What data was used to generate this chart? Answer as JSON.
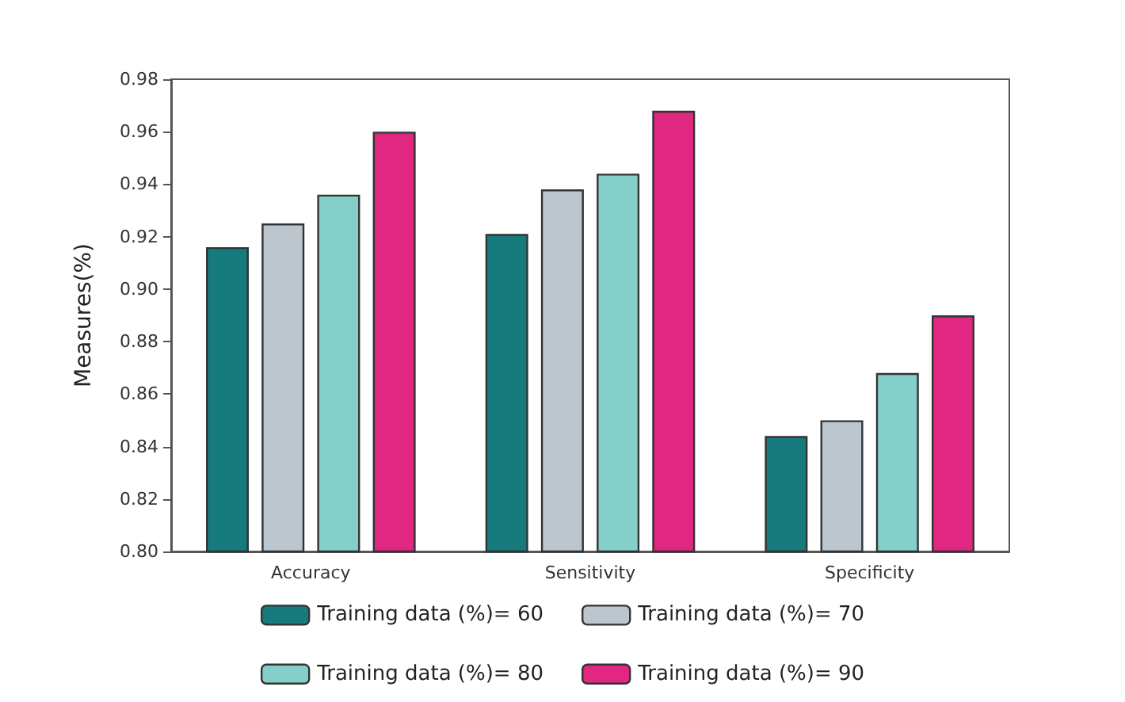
{
  "chart_data": {
    "type": "bar",
    "ylabel": "Measures(%)",
    "categories": [
      "Accuracy",
      "Sensitivity",
      "Specificity"
    ],
    "series": [
      {
        "name": "Training data (%)= 60",
        "color": "#177a7c",
        "values": [
          0.916,
          0.921,
          0.844
        ]
      },
      {
        "name": "Training data (%)= 70",
        "color": "#bcc6ce",
        "values": [
          0.925,
          0.938,
          0.85
        ]
      },
      {
        "name": "Training data (%)= 80",
        "color": "#85cfca",
        "values": [
          0.936,
          0.944,
          0.868
        ]
      },
      {
        "name": "Training data (%)= 90",
        "color": "#e02782",
        "values": [
          0.96,
          0.968,
          0.89
        ]
      }
    ],
    "ylim": [
      0.8,
      0.98
    ],
    "yticks": [
      {
        "value": 0.8,
        "label": "0.80"
      },
      0.82,
      0.84,
      0.86,
      0.88,
      {
        "value": 0.9,
        "label": "0.90"
      },
      0.92,
      0.94,
      0.96,
      0.98
    ],
    "grid": false,
    "legend": "bottom"
  }
}
